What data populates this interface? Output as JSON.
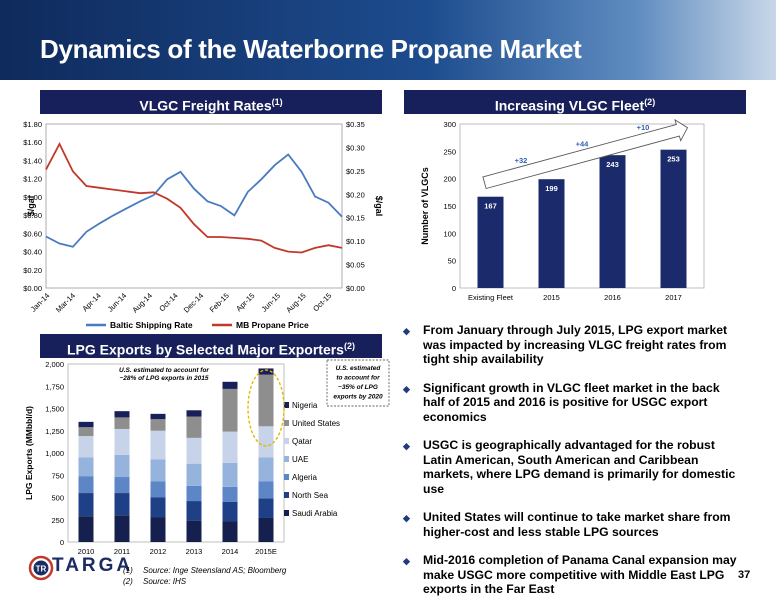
{
  "title": "Dynamics of the Waterborne Propane Market",
  "panels": {
    "freight": {
      "title": "VLGC Freight Rates",
      "sup": "(1)"
    },
    "fleet": {
      "title": "Increasing VLGC Fleet",
      "sup": "(2)"
    },
    "exports": {
      "title": "LPG Exports by Selected Major Exporters",
      "sup": "(2)"
    }
  },
  "bullets": [
    "From January through July 2015, LPG export market was impacted by increasing VLGC freight rates from tight ship availability",
    "Significant growth in VLGC fleet market in the back half of 2015 and 2016 is positive for USGC export economics",
    "USGC is geographically advantaged for the robust Latin American, South American and Caribbean markets, where LPG demand is primarily for domestic use",
    "United States will continue to take market share from higher-cost and less stable LPG sources",
    "Mid-2016 completion of Panama Canal expansion may make USGC more competitive with Middle East LPG exports in the Far East"
  ],
  "logo": {
    "text": "TARGA",
    "badge": "TR"
  },
  "footnotes": [
    {
      "num": "(1)",
      "text": "Source: Inge Steensland AS; Bloomberg"
    },
    {
      "num": "(2)",
      "text": "Source: IHS"
    }
  ],
  "page_number": "37",
  "colors": {
    "navy": "#17205a",
    "series_blue": "#4a7ac2",
    "series_red": "#c0392b",
    "bar_navy": "#1b2a6b"
  },
  "chart_data": [
    {
      "type": "line",
      "x_ticks": [
        "Jan-14",
        "Mar-14",
        "Apr-14",
        "Jun-14",
        "Aug-14",
        "Oct-14",
        "Dec-14",
        "Feb-15",
        "Apr-15",
        "Jun-15",
        "Aug-15",
        "Oct-15"
      ],
      "ylabel": "$/gal",
      "ylabel_right": "$/gal",
      "left_ticks": [
        "$0.00",
        "$0.20",
        "$0.40",
        "$0.60",
        "$0.80",
        "$1.00",
        "$1.20",
        "$1.40",
        "$1.60",
        "$1.80"
      ],
      "right_ticks": [
        "$0.00",
        "$0.05",
        "$0.10",
        "$0.15",
        "$0.20",
        "$0.25",
        "$0.30",
        "$0.35"
      ],
      "ylim_left": [
        0,
        1.8
      ],
      "ylim_right": [
        0,
        0.35
      ],
      "legend_position": "bottom",
      "series": [
        {
          "name": "Baltic Shipping Rate",
          "axis": "right",
          "color": "#4a7ac2",
          "x": [
            "2014-01",
            "2014-02",
            "2014-03",
            "2014-04",
            "2014-05",
            "2014-06",
            "2014-07",
            "2014-08",
            "2014-09",
            "2014-10",
            "2014-11",
            "2014-12",
            "2015-01",
            "2015-02",
            "2015-03",
            "2015-04",
            "2015-05",
            "2015-06",
            "2015-07",
            "2015-08",
            "2015-09",
            "2015-10",
            "2015-11"
          ],
          "values": [
            0.11,
            0.095,
            0.088,
            0.12,
            0.138,
            0.155,
            0.17,
            0.185,
            0.198,
            0.232,
            0.248,
            0.212,
            0.185,
            0.175,
            0.155,
            0.205,
            0.232,
            0.262,
            0.285,
            0.248,
            0.195,
            0.182,
            0.152
          ]
        },
        {
          "name": "MB Propane Price",
          "axis": "left",
          "color": "#c0392b",
          "x": [
            "2014-01",
            "2014-02",
            "2014-03",
            "2014-04",
            "2014-05",
            "2014-06",
            "2014-07",
            "2014-08",
            "2014-09",
            "2014-10",
            "2014-11",
            "2014-12",
            "2015-01",
            "2015-02",
            "2015-03",
            "2015-04",
            "2015-05",
            "2015-06",
            "2015-07",
            "2015-08",
            "2015-09",
            "2015-10",
            "2015-11"
          ],
          "values": [
            1.3,
            1.58,
            1.28,
            1.12,
            1.1,
            1.08,
            1.06,
            1.04,
            1.05,
            0.98,
            0.88,
            0.7,
            0.56,
            0.56,
            0.55,
            0.54,
            0.52,
            0.44,
            0.4,
            0.39,
            0.44,
            0.47,
            0.44
          ]
        }
      ]
    },
    {
      "type": "bar",
      "categories": [
        "Existing Fleet",
        "2015",
        "2016",
        "2017"
      ],
      "values": [
        167,
        199,
        243,
        253
      ],
      "ylabel": "Number of VLGCs",
      "ylim": [
        0,
        300
      ],
      "y_ticks": [
        0,
        50,
        100,
        150,
        200,
        250,
        300
      ],
      "annotations": [
        "+32",
        "+44",
        "+10"
      ]
    },
    {
      "type": "bar",
      "stacked": true,
      "categories": [
        "2010",
        "2011",
        "2012",
        "2013",
        "2014",
        "2015E"
      ],
      "ylabel": "LPG Exports (MMbbl/d)",
      "ylim": [
        0,
        2000
      ],
      "y_ticks": [
        "0",
        "250",
        "500",
        "750",
        "1,000",
        "1,250",
        "1,500",
        "1,750",
        "2,000"
      ],
      "series": [
        {
          "name": "Saudi Arabia",
          "color": "#15204f",
          "values": [
            290,
            300,
            280,
            240,
            230,
            270
          ]
        },
        {
          "name": "North Sea",
          "color": "#1f3f86",
          "values": [
            260,
            250,
            220,
            220,
            220,
            220
          ]
        },
        {
          "name": "Algeria",
          "color": "#5d86c6",
          "values": [
            190,
            180,
            180,
            170,
            170,
            190
          ]
        },
        {
          "name": "UAE",
          "color": "#96b3de",
          "values": [
            210,
            250,
            250,
            250,
            270,
            270
          ]
        },
        {
          "name": "Qatar",
          "color": "#c6d3e8",
          "values": [
            240,
            290,
            320,
            290,
            350,
            350
          ]
        },
        {
          "name": "United States",
          "color": "#8e8e8e",
          "values": [
            100,
            130,
            130,
            240,
            480,
            580
          ]
        },
        {
          "name": "Nigeria",
          "color": "#17205a",
          "values": [
            60,
            70,
            60,
            70,
            80,
            70
          ]
        }
      ],
      "annotations": [
        "U.S. estimated to account for ~28% of LPG exports in 2015",
        "U.S. estimated to account for ~35% of LPG exports by 2020"
      ]
    }
  ]
}
